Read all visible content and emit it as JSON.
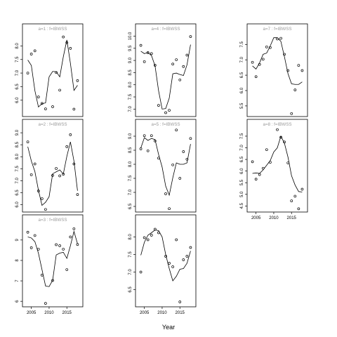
{
  "page": {
    "xlabel": "Year"
  },
  "colors": {
    "line": "#000000",
    "points": "#000000",
    "strip_text": "#999999",
    "frame": "#000000",
    "background": "#ffffff"
  },
  "chart_data": [
    {
      "type": "scatter",
      "panel": "a=1",
      "label": "a=1 : f=IBWSS",
      "ylim": [
        5.45,
        8.45
      ],
      "yticks": [
        6.0,
        6.5,
        7.0,
        7.5,
        8.0
      ],
      "yticklabels": [
        "6.0",
        "6.5",
        "7.0",
        "7.5",
        "8.0"
      ],
      "xlim": [
        2002.5,
        2019.5
      ],
      "xticks": [],
      "xticklabels": [],
      "points": {
        "x": [
          2004,
          2005,
          2006,
          2007,
          2008,
          2009,
          2011,
          2012,
          2013,
          2014,
          2015,
          2016,
          2017,
          2018
        ],
        "y": [
          7.0,
          7.7,
          7.82,
          6.12,
          5.88,
          5.68,
          5.76,
          7.02,
          6.37,
          8.33,
          8.12,
          7.91,
          5.67,
          6.72
        ]
      },
      "curve": {
        "x": [
          2004,
          2005,
          2006,
          2007,
          2008,
          2009,
          2010,
          2011,
          2012,
          2013,
          2014,
          2015,
          2016,
          2017,
          2018
        ],
        "y": [
          7.48,
          7.28,
          6.35,
          5.75,
          5.87,
          5.9,
          6.86,
          7.06,
          7.05,
          6.86,
          7.6,
          8.22,
          7.36,
          6.36,
          6.55
        ]
      }
    },
    {
      "type": "scatter",
      "panel": "a=2",
      "label": "a=2 : f=IBWSS",
      "ylim": [
        5.75,
        9.15
      ],
      "yticks": [
        6.0,
        6.5,
        7.0,
        7.5,
        8.0,
        8.5,
        9.0
      ],
      "yticklabels": [
        "6.0",
        "6.5",
        "7.0",
        "7.5",
        "8.0",
        "8.5",
        "9.0"
      ],
      "xlim": [
        2002.5,
        2019.5
      ],
      "xticks": [],
      "xticklabels": [],
      "points": {
        "x": [
          2004,
          2005,
          2006,
          2007,
          2008,
          2009,
          2011,
          2012,
          2013,
          2014,
          2015,
          2016,
          2017,
          2018
        ],
        "y": [
          8.62,
          7.25,
          7.7,
          6.57,
          6.25,
          5.8,
          7.22,
          7.51,
          7.2,
          7.27,
          8.42,
          8.92,
          7.7,
          6.42
        ]
      },
      "curve": {
        "x": [
          2004,
          2005,
          2006,
          2007,
          2008,
          2009,
          2010,
          2011,
          2012,
          2013,
          2014,
          2015,
          2016,
          2017,
          2018
        ],
        "y": [
          8.42,
          7.82,
          7.38,
          6.6,
          5.97,
          6.1,
          6.33,
          7.29,
          7.37,
          7.45,
          7.28,
          8.02,
          8.62,
          7.82,
          6.58
        ]
      }
    },
    {
      "type": "scatter",
      "panel": "a=3",
      "label": "a=3 : f=IBWSS",
      "ylim": [
        5.8,
        9.75
      ],
      "yticks": [
        6,
        7,
        8,
        9
      ],
      "yticklabels": [
        "6",
        "7",
        "8",
        "9"
      ],
      "xlim": [
        2002.5,
        2019.5
      ],
      "xticks": [
        2005,
        2010,
        2015
      ],
      "xticklabels": [
        "2005",
        "2010",
        "2015"
      ],
      "points": {
        "x": [
          2004,
          2005,
          2006,
          2007,
          2008,
          2009,
          2011,
          2012,
          2013,
          2014,
          2015,
          2016,
          2017,
          2018
        ],
        "y": [
          9.38,
          8.62,
          9.22,
          8.55,
          7.28,
          5.9,
          7.02,
          8.77,
          8.72,
          8.55,
          7.55,
          9.15,
          9.55,
          8.78
        ]
      },
      "curve": {
        "x": [
          2004,
          2005,
          2006,
          2007,
          2008,
          2009,
          2010,
          2011,
          2012,
          2013,
          2014,
          2015,
          2016,
          2017,
          2018
        ],
        "y": [
          9.15,
          9.1,
          8.92,
          8.35,
          7.55,
          6.75,
          6.72,
          7.03,
          8.27,
          8.36,
          8.4,
          8.1,
          8.72,
          9.42,
          8.82
        ]
      }
    },
    {
      "type": "scatter",
      "panel": "a=4",
      "label": "a=4 : f=IBWSS",
      "ylim": [
        6.75,
        10.1
      ],
      "yticks": [
        7.0,
        7.5,
        8.0,
        8.5,
        9.0,
        9.5,
        10.0
      ],
      "yticklabels": [
        "7.0",
        "7.5",
        "8.0",
        "8.5",
        "9.0",
        "9.5",
        "10.0"
      ],
      "xlim": [
        2002.5,
        2019.5
      ],
      "xticks": [],
      "xticklabels": [],
      "points": {
        "x": [
          2004,
          2005,
          2006,
          2007,
          2008,
          2009,
          2011,
          2012,
          2013,
          2014,
          2015,
          2016,
          2017,
          2018
        ],
        "y": [
          9.62,
          8.95,
          9.32,
          9.28,
          8.8,
          7.15,
          6.85,
          6.95,
          8.85,
          9.03,
          8.2,
          8.75,
          9.22,
          9.98
        ]
      },
      "curve": {
        "x": [
          2004,
          2005,
          2006,
          2007,
          2008,
          2009,
          2010,
          2011,
          2012,
          2013,
          2014,
          2015,
          2016,
          2017,
          2018
        ],
        "y": [
          9.38,
          9.28,
          9.33,
          9.2,
          8.78,
          7.75,
          7.0,
          7.02,
          7.45,
          8.45,
          8.48,
          8.42,
          8.38,
          8.82,
          9.65
        ]
      }
    },
    {
      "type": "scatter",
      "panel": "a=5",
      "label": "a=5 : f=IBWSS",
      "ylim": [
        6.35,
        9.25
      ],
      "yticks": [
        6.5,
        7.0,
        7.5,
        8.0,
        8.5,
        9.0
      ],
      "yticklabels": [
        "6.5",
        "7.0",
        "7.5",
        "8.0",
        "8.5",
        "9.0"
      ],
      "xlim": [
        2002.5,
        2019.5
      ],
      "xticks": [],
      "xticklabels": [],
      "points": {
        "x": [
          2004,
          2005,
          2006,
          2007,
          2008,
          2009,
          2011,
          2012,
          2013,
          2014,
          2015,
          2016,
          2017,
          2018
        ],
        "y": [
          8.55,
          9.02,
          8.48,
          9.02,
          8.83,
          8.22,
          6.95,
          6.42,
          7.98,
          9.22,
          7.5,
          8.45,
          8.18,
          8.92
        ]
      },
      "curve": {
        "x": [
          2004,
          2005,
          2006,
          2007,
          2008,
          2009,
          2010,
          2011,
          2012,
          2013,
          2014,
          2015,
          2016,
          2017,
          2018
        ],
        "y": [
          8.58,
          8.95,
          8.85,
          8.92,
          8.88,
          8.35,
          7.9,
          7.22,
          6.9,
          7.52,
          8.05,
          8.0,
          8.0,
          8.05,
          8.72
        ]
      }
    },
    {
      "type": "scatter",
      "panel": "a=6",
      "label": "",
      "ylim": [
        6.05,
        8.35
      ],
      "yticks": [
        6.5,
        7.0,
        7.5,
        8.0
      ],
      "yticklabels": [
        "6.5",
        "7.0",
        "7.5",
        "8.0"
      ],
      "xlim": [
        2002.5,
        2019.5
      ],
      "xticks": [
        2005,
        2010,
        2015
      ],
      "xticklabels": [
        "2005",
        "2010",
        "2015"
      ],
      "points": {
        "x": [
          2004,
          2005,
          2006,
          2007,
          2008,
          2009,
          2011,
          2012,
          2013,
          2014,
          2015,
          2016,
          2017,
          2018
        ],
        "y": [
          7.0,
          7.98,
          7.92,
          8.05,
          8.22,
          8.12,
          7.45,
          7.25,
          7.15,
          7.92,
          6.15,
          7.35,
          7.45,
          7.7
        ]
      },
      "curve": {
        "x": [
          2004,
          2005,
          2006,
          2007,
          2008,
          2009,
          2010,
          2011,
          2012,
          2013,
          2014,
          2015,
          2016,
          2017,
          2018
        ],
        "y": [
          7.48,
          7.85,
          8.05,
          8.12,
          8.2,
          8.18,
          8.0,
          7.5,
          7.1,
          6.75,
          6.88,
          7.08,
          7.1,
          7.25,
          7.6
        ]
      }
    },
    {
      "type": "scatter",
      "panel": "a=7",
      "label": "a=7 : f=IBWSS",
      "ylim": [
        5.2,
        7.85
      ],
      "yticks": [
        5.5,
        6.0,
        6.5,
        7.0,
        7.5
      ],
      "yticklabels": [
        "5.5",
        "6.0",
        "6.5",
        "7.0",
        "7.5"
      ],
      "xlim": [
        2002.5,
        2019.5
      ],
      "xticks": [],
      "xticklabels": [],
      "points": {
        "x": [
          2004,
          2005,
          2006,
          2007,
          2008,
          2009,
          2011,
          2012,
          2013,
          2014,
          2015,
          2016,
          2017,
          2018
        ],
        "y": [
          6.92,
          6.45,
          6.85,
          7.02,
          7.42,
          7.4,
          7.68,
          7.7,
          7.18,
          6.65,
          5.25,
          6.02,
          6.82,
          6.65
        ]
      },
      "curve": {
        "x": [
          2004,
          2005,
          2006,
          2007,
          2008,
          2009,
          2010,
          2011,
          2012,
          2013,
          2014,
          2015,
          2016,
          2017,
          2018
        ],
        "y": [
          6.8,
          6.7,
          6.9,
          7.18,
          7.22,
          7.45,
          7.72,
          7.72,
          7.6,
          7.1,
          6.55,
          6.22,
          6.2,
          6.2,
          6.28
        ]
      }
    },
    {
      "type": "scatter",
      "panel": "a=8",
      "label": "a=8 : f=IBWSS",
      "ylim": [
        4.3,
        7.8
      ],
      "yticks": [
        4.5,
        5.0,
        5.5,
        6.0,
        6.5,
        7.0,
        7.5
      ],
      "yticklabels": [
        "4.5",
        "5.0",
        "5.5",
        "6.0",
        "6.5",
        "7.0",
        "7.5"
      ],
      "xlim": [
        2002.5,
        2019.5
      ],
      "xticks": [
        2005,
        2010,
        2015
      ],
      "xticklabels": [
        "2005",
        "2010",
        "2015"
      ],
      "points": {
        "x": [
          2004,
          2005,
          2006,
          2007,
          2008,
          2009,
          2011,
          2012,
          2013,
          2014,
          2015,
          2016,
          2017,
          2018
        ],
        "y": [
          6.4,
          5.65,
          5.85,
          6.12,
          6.92,
          6.38,
          7.78,
          7.45,
          7.25,
          6.35,
          4.72,
          4.92,
          4.38,
          5.22
        ]
      },
      "curve": {
        "x": [
          2004,
          2005,
          2006,
          2007,
          2008,
          2009,
          2010,
          2011,
          2012,
          2013,
          2014,
          2015,
          2016,
          2017,
          2018
        ],
        "y": [
          5.9,
          5.92,
          5.9,
          6.05,
          6.25,
          6.45,
          6.82,
          7.0,
          7.5,
          7.2,
          6.6,
          5.8,
          5.4,
          5.12,
          5.1
        ]
      }
    }
  ]
}
